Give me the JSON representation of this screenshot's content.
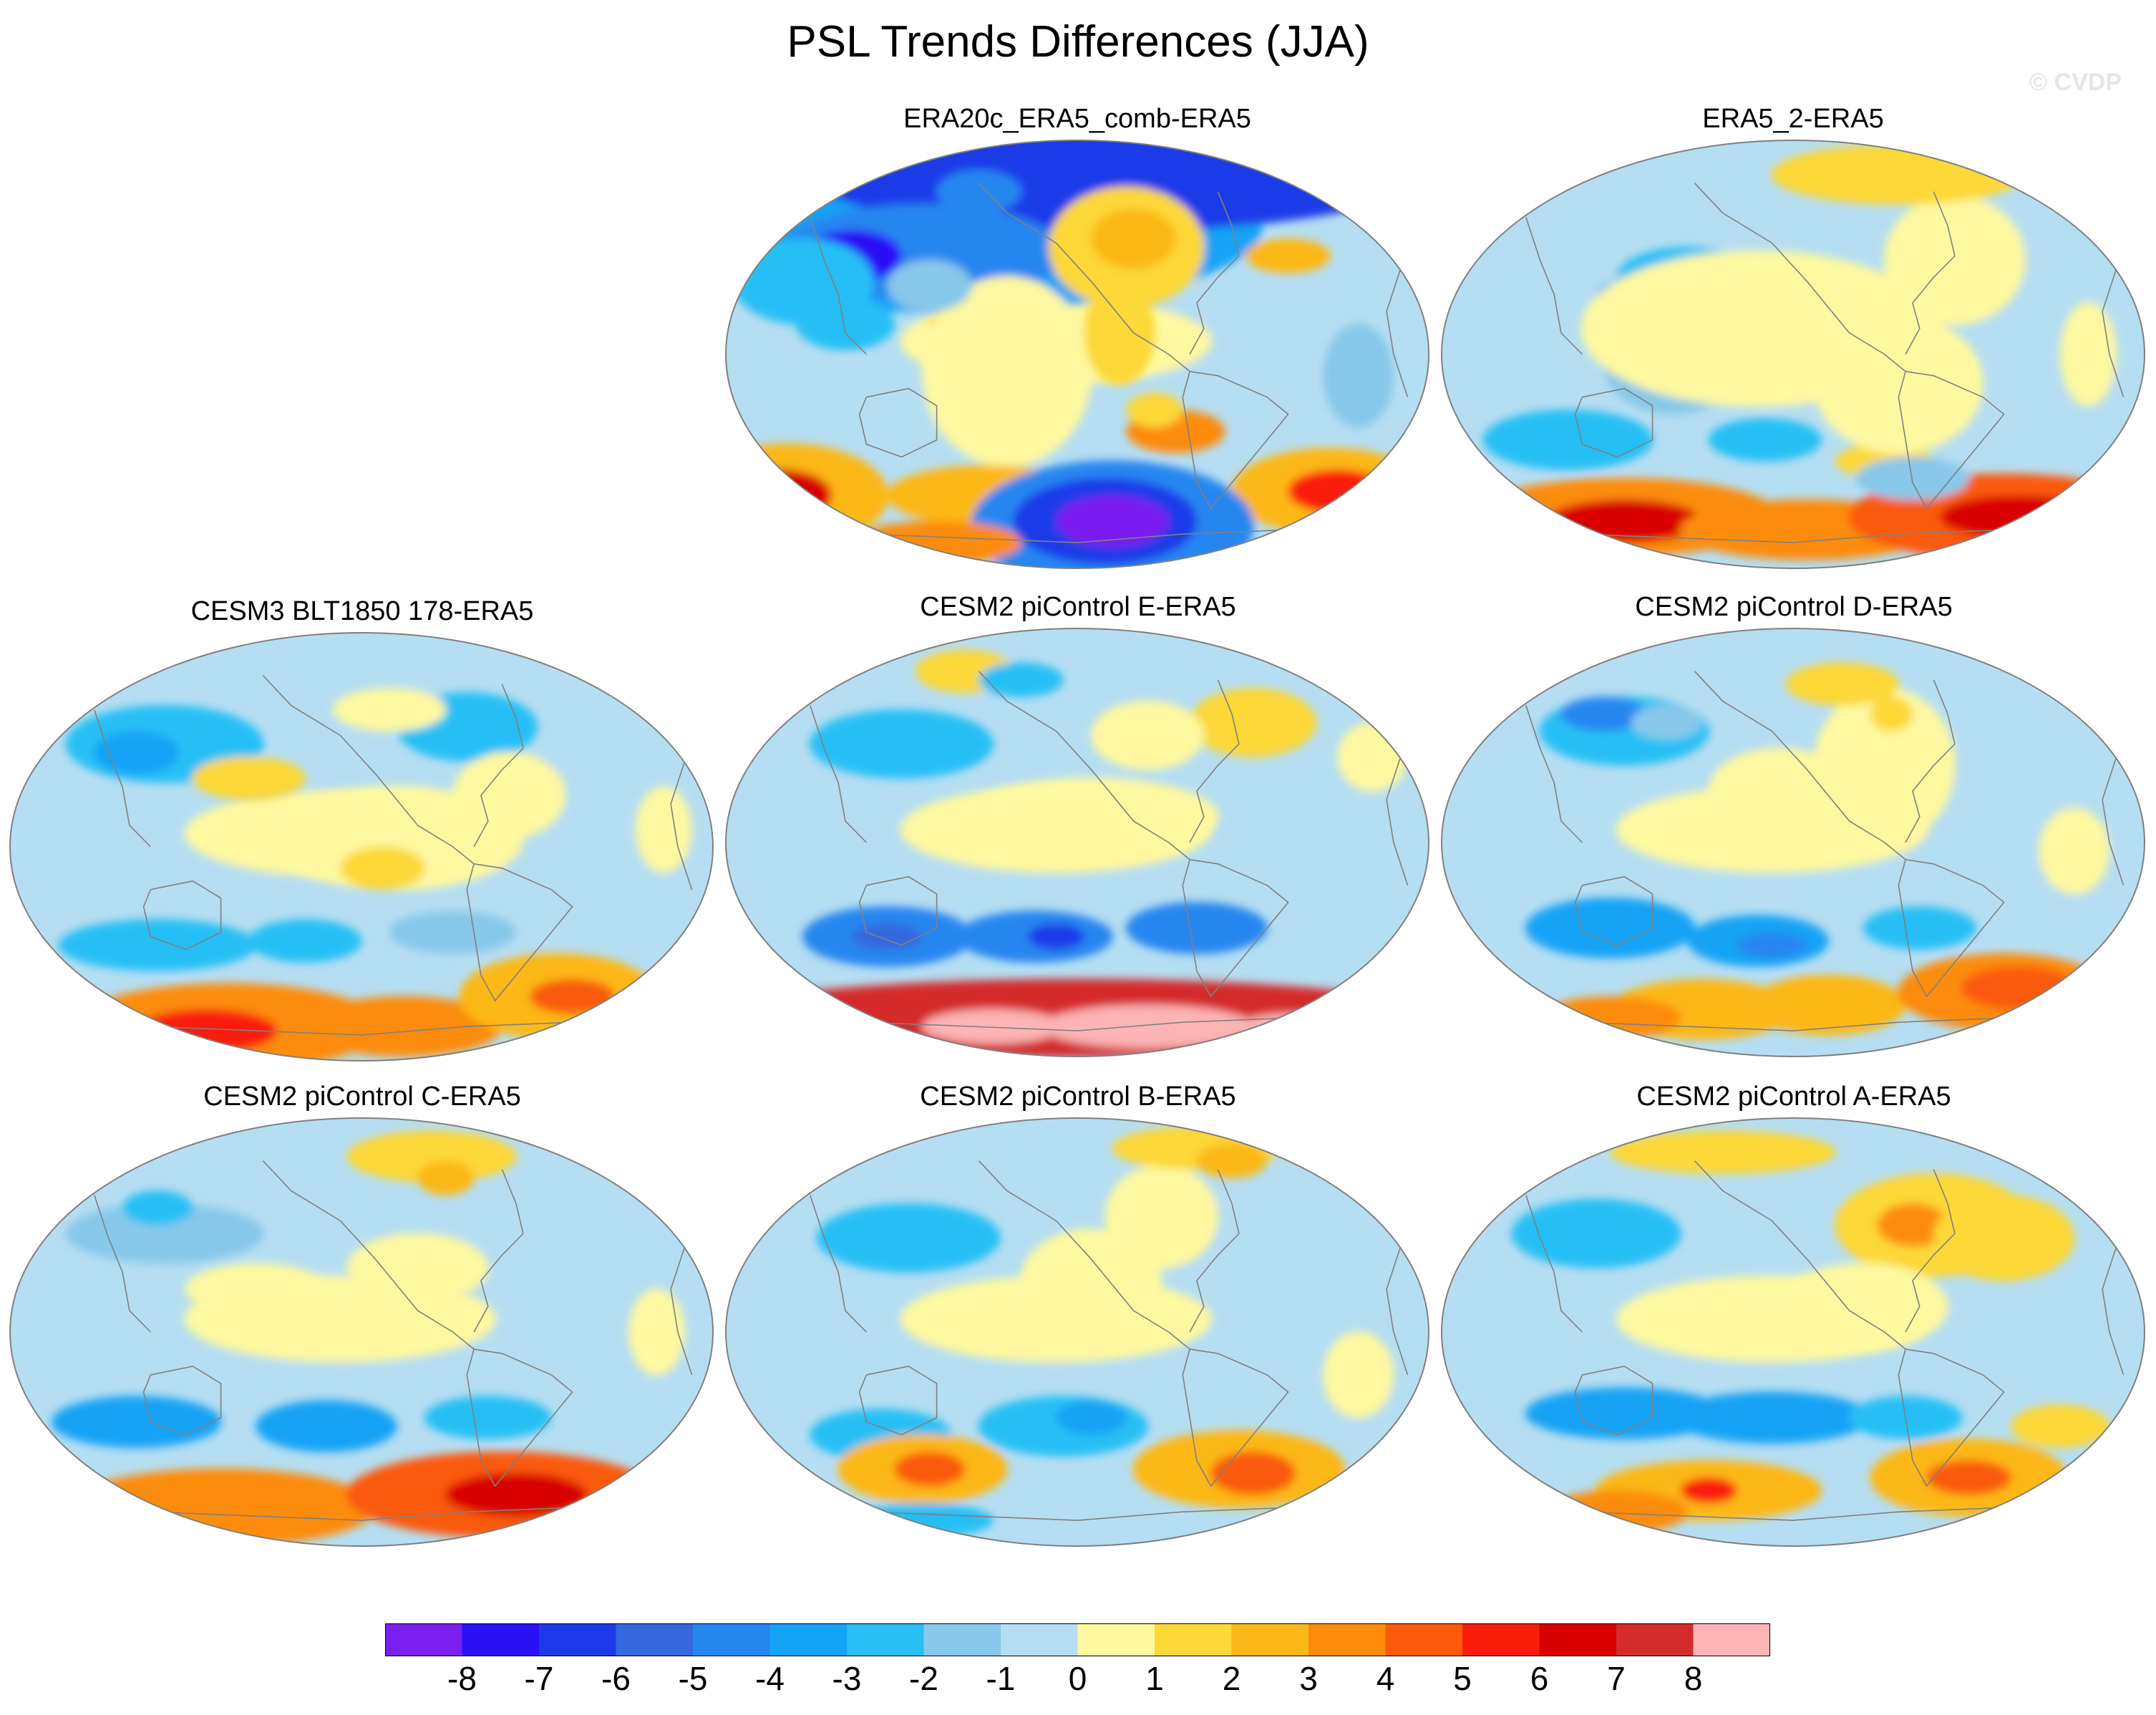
{
  "title": "PSL Trends Differences (JJA)",
  "watermark": "© CVDP",
  "panels": [
    {
      "title": "ERA20c_ERA5_comb-ERA5",
      "pattern": "era20c"
    },
    {
      "title": "ERA5_2-ERA5",
      "pattern": "era5_2"
    },
    {
      "title": "CESM3 BLT1850 178-ERA5",
      "pattern": "cesm3"
    },
    {
      "title": "CESM2 piControl E-ERA5",
      "pattern": "E"
    },
    {
      "title": "CESM2 piControl D-ERA5",
      "pattern": "D"
    },
    {
      "title": "CESM2 piControl C-ERA5",
      "pattern": "C"
    },
    {
      "title": "CESM2 piControl B-ERA5",
      "pattern": "B"
    },
    {
      "title": "CESM2 piControl A-ERA5",
      "pattern": "A"
    }
  ],
  "colorbar": {
    "colors": [
      "#7a1ff0",
      "#2a10f5",
      "#1e3ae8",
      "#3468dc",
      "#2586f0",
      "#13a3f5",
      "#28bff5",
      "#88c8ea",
      "#b6def2",
      "#fef8a0",
      "#fcd838",
      "#fcb818",
      "#fc8c0a",
      "#fa5a0a",
      "#fa1e0a",
      "#d80000",
      "#d42c2c",
      "#fcb4b4"
    ],
    "labels": [
      "-8",
      "-7",
      "-6",
      "-5",
      "-4",
      "-3",
      "-2",
      "-1",
      "0",
      "1",
      "2",
      "3",
      "4",
      "5",
      "6",
      "7",
      "8"
    ]
  },
  "colors": {
    "coastline": "#808080",
    "map_border": "#808080"
  }
}
